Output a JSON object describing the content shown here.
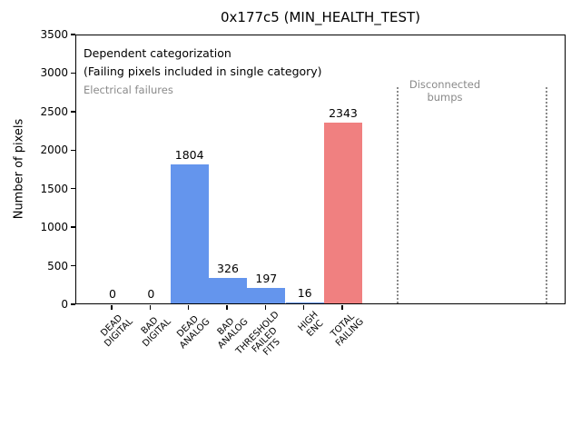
{
  "chart_data": {
    "type": "bar",
    "title": "0x177c5 (MIN_HEALTH_TEST)",
    "xlabel": "",
    "ylabel": "Number of pixels",
    "ylim": [
      0,
      3500
    ],
    "yticks": [
      0,
      500,
      1000,
      1500,
      2000,
      2500,
      3000,
      3500
    ],
    "categories": [
      "DEAD\nDIGITAL",
      "BAD\nDIGITAL",
      "DEAD\nANALOG",
      "BAD\nANALOG",
      "THRESHOLD\nFAILED\nFITS",
      "HIGH\nENC",
      "TOTAL\nFAILING"
    ],
    "values": [
      0,
      0,
      1804,
      326,
      197,
      16,
      2343
    ],
    "bar_labels": [
      "0",
      "0",
      "1804",
      "326",
      "197",
      "16",
      "2343"
    ],
    "bar_colors": [
      "#6495ED",
      "#6495ED",
      "#6495ED",
      "#6495ED",
      "#6495ED",
      "#6495ED",
      "#F08080"
    ],
    "grid": false,
    "legend": null,
    "annotations": {
      "categorization_note": "Dependent categorization\n(Failing pixels included in single category)",
      "electrical_region_label": "Electrical failures",
      "disconnected_region_label": "Disconnected\nbumps"
    },
    "region_separators": {
      "style": "dotted",
      "color": "#8a8a8a",
      "count": 2
    },
    "colors": {
      "electrical_bar": "#6495ED",
      "total_failing_bar": "#F08080",
      "annotation_gray": "#8a8a8a",
      "axis": "#000000"
    }
  }
}
